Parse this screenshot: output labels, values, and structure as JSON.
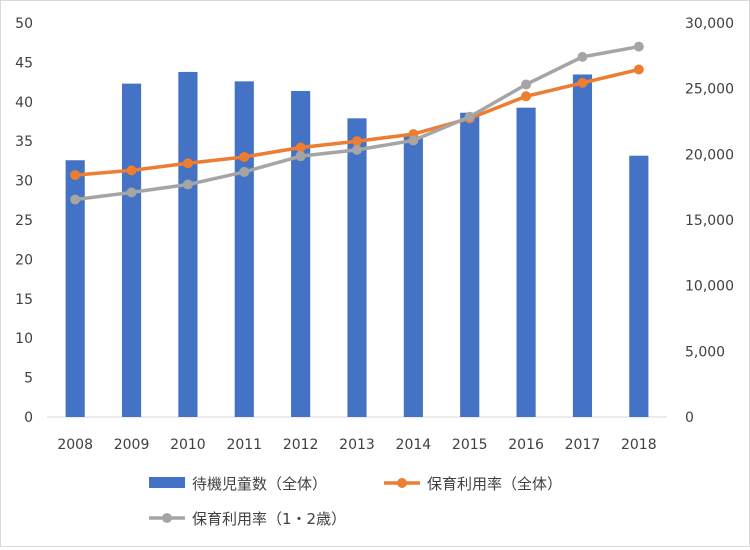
{
  "chart_data": {
    "type": "bar+line",
    "categories": [
      "2008",
      "2009",
      "2010",
      "2011",
      "2012",
      "2013",
      "2014",
      "2015",
      "2016",
      "2017",
      "2018"
    ],
    "left_axis": {
      "min": 0,
      "max": 50,
      "step": 5,
      "ticks": [
        "0",
        "5",
        "10",
        "15",
        "20",
        "25",
        "30",
        "35",
        "40",
        "45",
        "50"
      ]
    },
    "right_axis": {
      "min": 0,
      "max": 30000,
      "step": 5000,
      "ticks": [
        "0",
        "5,000",
        "10,000",
        "15,000",
        "20,000",
        "25,000",
        "30,000"
      ]
    },
    "grid": false,
    "legend_position": "bottom",
    "series": [
      {
        "name": "待機児童数（全体）",
        "kind": "bar",
        "axis": "right",
        "color": "#4472c4",
        "values": [
          19550,
          25384,
          26275,
          25556,
          24825,
          22741,
          21371,
          23167,
          23553,
          26081,
          19895
        ]
      },
      {
        "name": "保育利用率（全体）",
        "kind": "line",
        "axis": "left",
        "color": "#ed7d31",
        "values": [
          30.7,
          31.3,
          32.2,
          33.0,
          34.2,
          35.0,
          35.9,
          37.9,
          40.7,
          42.4,
          44.1
        ]
      },
      {
        "name": "保育利用率（1・2歳）",
        "kind": "line",
        "axis": "left",
        "color": "#a5a5a5",
        "values": [
          27.6,
          28.5,
          29.5,
          31.1,
          33.1,
          33.9,
          35.1,
          38.1,
          42.2,
          45.7,
          47.0
        ]
      }
    ]
  }
}
